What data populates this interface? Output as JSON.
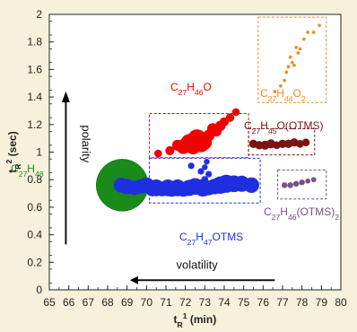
{
  "chart_data": {
    "type": "scatter",
    "xlabel_parts": [
      "t",
      "R",
      "1",
      " (min)"
    ],
    "ylabel_parts": [
      "t",
      "R",
      "2",
      " (sec)"
    ],
    "xlim": [
      65,
      80
    ],
    "ylim": [
      0,
      2
    ],
    "x_ticks": [
      65,
      66,
      67,
      68,
      69,
      70,
      71,
      72,
      73,
      74,
      75,
      76,
      77,
      78,
      79,
      80
    ],
    "y_ticks": [
      0,
      0.2,
      0.4,
      0.6,
      0.8,
      1,
      1.2,
      1.4,
      1.6,
      1.8,
      2
    ],
    "y_tick_labels": [
      "0",
      "0.2",
      "0.4",
      "0.6",
      "0.8",
      "1",
      "1.2",
      "1.4",
      "1.6",
      "1.8",
      "2"
    ],
    "colors": {
      "green": "#1a8a1a",
      "blue": "#1f2fe0",
      "red": "#f00000",
      "brown": "#7b1414",
      "orange": "#f08a1e",
      "purple": "#7a4f8a"
    },
    "series": [
      {
        "label_parts": [
          [
            "C",
            ""
          ],
          [
            "27",
            "sub"
          ],
          [
            "H",
            ""
          ],
          [
            "48",
            "sub"
          ]
        ],
        "color_key": "green",
        "box": false,
        "points": [
          [
            68.75,
            0.76,
            8
          ]
        ],
        "big_circle": true
      },
      {
        "label_parts": [
          [
            "C",
            ""
          ],
          [
            "27",
            "sub"
          ],
          [
            "H",
            ""
          ],
          [
            "47",
            "sub"
          ],
          [
            "OTMS",
            ""
          ]
        ],
        "color_key": "blue",
        "box": [
          70.15,
          75.85,
          0.63,
          0.955
        ],
        "points": [
          [
            69.4,
            0.74,
            2.2
          ],
          [
            69.7,
            0.75,
            2.2
          ],
          [
            70.0,
            0.76,
            2.4
          ],
          [
            70.3,
            0.73,
            2.2
          ],
          [
            70.5,
            0.74,
            2.6
          ],
          [
            70.8,
            0.73,
            2.2
          ],
          [
            71.1,
            0.74,
            2.6
          ],
          [
            71.3,
            0.73,
            2.3
          ],
          [
            71.6,
            0.74,
            2.6
          ],
          [
            71.9,
            0.73,
            2.3
          ],
          [
            72.2,
            0.74,
            2.5
          ],
          [
            72.5,
            0.75,
            2.6
          ],
          [
            72.9,
            0.74,
            2.7
          ],
          [
            73.2,
            0.74,
            2.3
          ],
          [
            73.5,
            0.75,
            2.4
          ],
          [
            73.8,
            0.76,
            2.7
          ],
          [
            74.1,
            0.77,
            2.8
          ],
          [
            74.5,
            0.77,
            2.6
          ],
          [
            74.9,
            0.77,
            2.5
          ],
          [
            75.4,
            0.76,
            2.4
          ],
          [
            68.7,
            0.76,
            2.3
          ],
          [
            69.0,
            0.75,
            2.4
          ],
          [
            72.3,
            0.9,
            1.0
          ],
          [
            72.8,
            0.86,
            1.0
          ],
          [
            73.0,
            0.89,
            0.9
          ],
          [
            73.1,
            0.93,
            0.9
          ],
          [
            73.2,
            0.84,
            1.0
          ],
          [
            73.0,
            0.8,
            1.1
          ]
        ]
      },
      {
        "label_parts": [
          [
            "C",
            ""
          ],
          [
            "27",
            "sub"
          ],
          [
            "H",
            ""
          ],
          [
            "46",
            "sub"
          ],
          [
            "O",
            ""
          ]
        ],
        "color_key": "red",
        "box": [
          70.15,
          75.25,
          0.96,
          1.28
        ],
        "points": [
          [
            70.6,
            0.99,
            1.2
          ],
          [
            71.2,
            1.01,
            1.4
          ],
          [
            71.6,
            1.05,
            1.7
          ],
          [
            71.9,
            1.04,
            2.3
          ],
          [
            72.2,
            1.07,
            2.6
          ],
          [
            72.4,
            1.04,
            2.4
          ],
          [
            72.6,
            1.1,
            2.8
          ],
          [
            72.8,
            1.06,
            2.6
          ],
          [
            73.0,
            1.07,
            2.2
          ],
          [
            73.2,
            1.12,
            1.8
          ],
          [
            73.4,
            1.17,
            1.7
          ],
          [
            73.6,
            1.15,
            1.6
          ],
          [
            73.8,
            1.19,
            1.6
          ],
          [
            74.0,
            1.22,
            1.4
          ],
          [
            74.3,
            1.25,
            1.3
          ],
          [
            74.6,
            1.29,
            1.2
          ]
        ]
      },
      {
        "label_parts": [
          [
            "C",
            ""
          ],
          [
            "27",
            "sub"
          ],
          [
            "H",
            ""
          ],
          [
            "45",
            "sub"
          ],
          [
            "O(OTMS)",
            ""
          ]
        ],
        "color_key": "brown",
        "box": [
          75.25,
          78.65,
          0.98,
          1.17
        ],
        "points": [
          [
            75.5,
            1.06,
            1.3
          ],
          [
            75.8,
            1.05,
            1.3
          ],
          [
            76.1,
            1.05,
            1.4
          ],
          [
            76.4,
            1.06,
            1.4
          ],
          [
            76.7,
            1.05,
            1.2
          ],
          [
            77.0,
            1.06,
            1.3
          ],
          [
            77.3,
            1.06,
            1.3
          ],
          [
            77.6,
            1.07,
            1.3
          ],
          [
            77.9,
            1.06,
            1.2
          ],
          [
            78.2,
            1.07,
            1.2
          ]
        ]
      },
      {
        "label_parts": [
          [
            "C",
            ""
          ],
          [
            "27",
            "sub"
          ],
          [
            "H",
            ""
          ],
          [
            "44",
            "sub"
          ],
          [
            "O",
            ""
          ],
          [
            "2",
            "sub"
          ]
        ],
        "color_key": "orange",
        "box": [
          75.75,
          79.25,
          1.36,
          1.98
        ],
        "points": [
          [
            76.6,
            1.44,
            0.45
          ],
          [
            76.9,
            1.48,
            0.45
          ],
          [
            77.1,
            1.52,
            0.45
          ],
          [
            77.2,
            1.58,
            0.45
          ],
          [
            77.3,
            1.62,
            0.45
          ],
          [
            77.4,
            1.69,
            0.45
          ],
          [
            77.5,
            1.65,
            0.45
          ],
          [
            77.6,
            1.63,
            0.45
          ],
          [
            77.7,
            1.76,
            0.45
          ],
          [
            77.8,
            1.72,
            0.45
          ],
          [
            77.9,
            1.75,
            0.45
          ],
          [
            78.1,
            1.82,
            0.45
          ],
          [
            78.3,
            1.87,
            0.45
          ],
          [
            78.6,
            1.87,
            0.45
          ],
          [
            78.9,
            1.92,
            0.45
          ]
        ]
      },
      {
        "label_parts": [
          [
            "C",
            ""
          ],
          [
            "27",
            "sub"
          ],
          [
            "H",
            ""
          ],
          [
            "46",
            "sub"
          ],
          [
            "(OTMS)",
            ""
          ],
          [
            "2",
            "sub"
          ]
        ],
        "color_key": "purple",
        "box": [
          76.75,
          79.25,
          0.66,
          0.87
        ],
        "points": [
          [
            77.1,
            0.76,
            0.9
          ],
          [
            77.4,
            0.76,
            0.9
          ],
          [
            77.7,
            0.77,
            0.9
          ],
          [
            78.0,
            0.78,
            0.9
          ],
          [
            78.3,
            0.79,
            0.8
          ],
          [
            78.6,
            0.8,
            0.8
          ]
        ]
      }
    ],
    "arrows": {
      "polarity_label": "polarity",
      "volatility_label": "volatility"
    }
  }
}
